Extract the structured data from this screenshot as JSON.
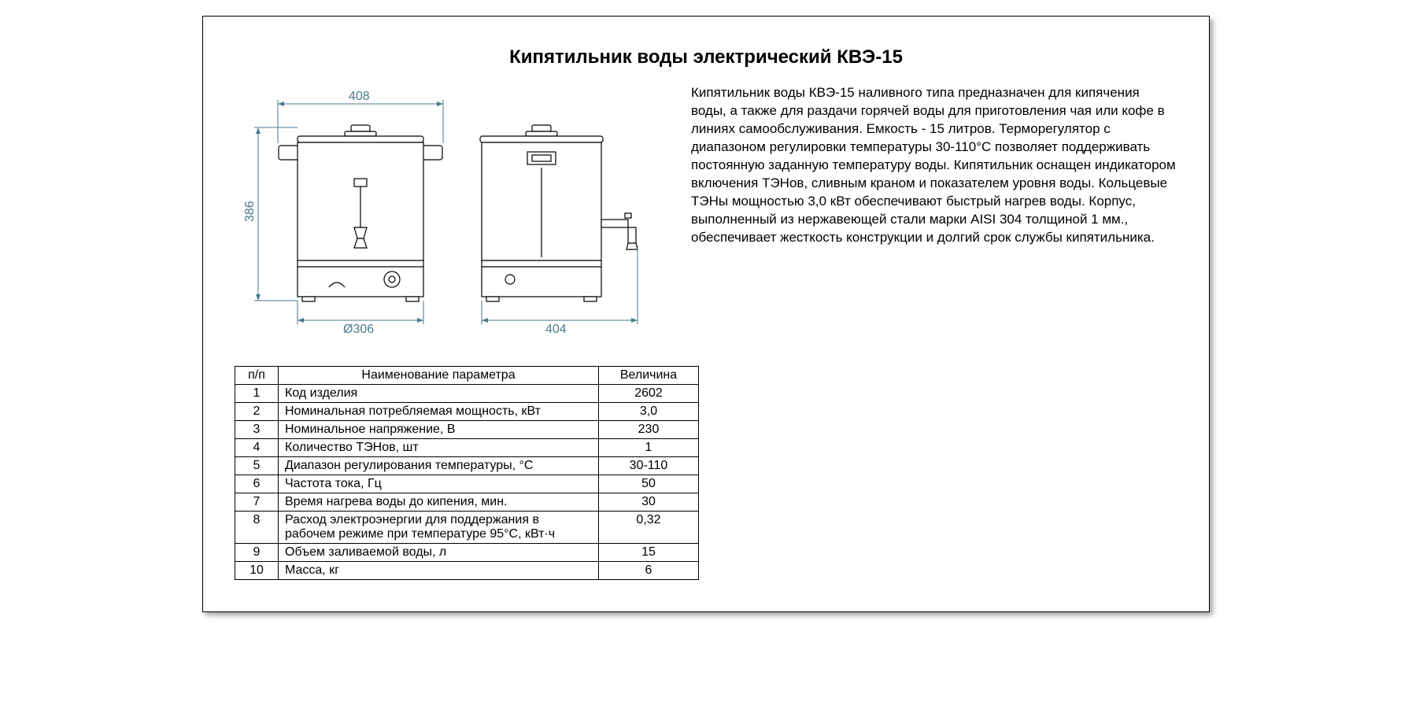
{
  "title": "Кипятильник воды электрический КВЭ-15",
  "drawing": {
    "dim_top_width": "408",
    "dim_height": "386",
    "dim_diameter": "Ø306",
    "dim_side_width": "404",
    "dim_color": "#4a7a8c",
    "line_color": "#000000"
  },
  "description": "Кипятильник воды КВЭ-15 наливного типа предназначен для кипячения воды, а также для раздачи горячей воды для приготовления чая или кофе в линиях самообслуживания. Емкость - 15 литров. Терморегулятор с диапазоном регулировки температуры 30-110°C позволяет поддерживать постоянную заданную температуру воды. Кипятильник оснащен индикатором включения ТЭНов, сливным краном и показателем уровня воды. Кольцевые ТЭНы мощностью 3,0 кВт обеспечивают быстрый нагрев воды. Корпус, выполненный из нержавеющей стали марки AISI 304 толщиной 1 мм., обеспечивает жесткость конструкции и долгий срок службы кипятильника.",
  "table": {
    "headers": {
      "num": "п/п",
      "name": "Наименование параметра",
      "val": "Величина"
    },
    "rows": [
      {
        "n": "1",
        "name": "Код изделия",
        "val": "2602"
      },
      {
        "n": "2",
        "name": "Номинальная потребляемая мощность, кВт",
        "val": "3,0"
      },
      {
        "n": "3",
        "name": "Номинальное напряжение, В",
        "val": "230"
      },
      {
        "n": "4",
        "name": "Количество ТЭНов, шт",
        "val": "1"
      },
      {
        "n": "5",
        "name": "Диапазон регулирования температуры, °С",
        "val": "30-110"
      },
      {
        "n": "6",
        "name": "Частота тока, Гц",
        "val": "50"
      },
      {
        "n": "7",
        "name": "Время нагрева воды до кипения, мин.",
        "val": "30"
      },
      {
        "n": "8",
        "name": "Расход электроэнергии для поддержания в рабочем режиме при температуре 95°С, кВт·ч",
        "val": "0,32"
      },
      {
        "n": "9",
        "name": "Объем заливаемой воды, л",
        "val": "15"
      },
      {
        "n": "10",
        "name": "Масса, кг",
        "val": "6"
      }
    ]
  }
}
